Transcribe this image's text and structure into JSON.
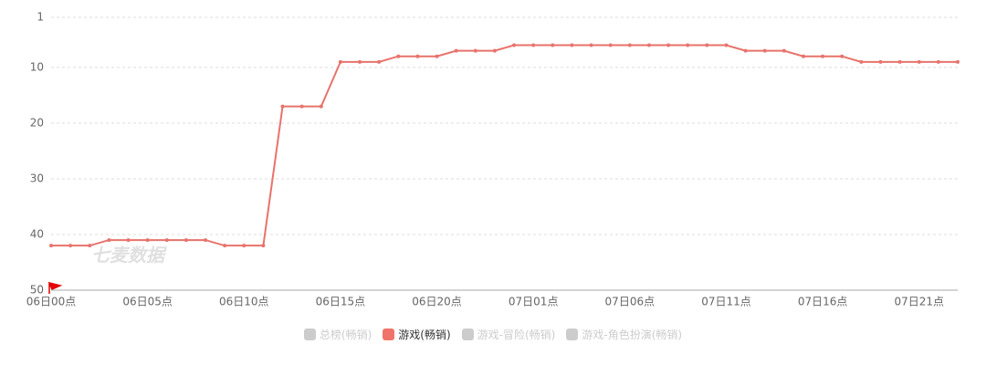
{
  "chart_data": {
    "type": "line",
    "watermark": "七麦数据",
    "y_inverted": true,
    "ylim": [
      1,
      50
    ],
    "yticks": [
      1,
      10,
      20,
      30,
      40,
      50
    ],
    "grid": true,
    "categories": [
      "06日00点",
      null,
      null,
      null,
      null,
      "06日05点",
      null,
      null,
      null,
      null,
      "06日10点",
      null,
      null,
      null,
      null,
      "06日15点",
      null,
      null,
      null,
      null,
      "06日20点",
      null,
      null,
      null,
      null,
      "07日01点",
      null,
      null,
      null,
      null,
      "07日06点",
      null,
      null,
      null,
      null,
      "07日11点",
      null,
      null,
      null,
      null,
      "07日16点",
      null,
      null,
      null,
      null,
      "07日21点",
      null,
      null
    ],
    "series": [
      {
        "name": "总榜(畅销)",
        "color": "#cccccc",
        "visible": false,
        "values": [
          null,
          null,
          null,
          null,
          null,
          null,
          null,
          null,
          null,
          null,
          null,
          null,
          null,
          null,
          null,
          null,
          null,
          null,
          null,
          null,
          null,
          null,
          null,
          null,
          null,
          null,
          null,
          null,
          null,
          null,
          null,
          null,
          null,
          null,
          null,
          null,
          null,
          null,
          null,
          null,
          null,
          null,
          null,
          null,
          null,
          null,
          null,
          null
        ]
      },
      {
        "name": "游戏(畅销)",
        "color": "#e8736c",
        "visible": true,
        "values": [
          42,
          42,
          42,
          41,
          41,
          41,
          41,
          41,
          41,
          42,
          42,
          42,
          17,
          17,
          17,
          9,
          9,
          9,
          8,
          8,
          8,
          7,
          7,
          7,
          6,
          6,
          6,
          6,
          6,
          6,
          6,
          6,
          6,
          6,
          6,
          6,
          7,
          7,
          7,
          8,
          8,
          8,
          9,
          9,
          9,
          9,
          9,
          9
        ]
      },
      {
        "name": "游戏-冒险(畅销)",
        "color": "#cccccc",
        "visible": false,
        "values": [
          null,
          null,
          null,
          null,
          null,
          null,
          null,
          null,
          null,
          null,
          null,
          null,
          null,
          null,
          null,
          null,
          null,
          null,
          null,
          null,
          null,
          null,
          null,
          null,
          null,
          null,
          null,
          null,
          null,
          null,
          null,
          null,
          null,
          null,
          null,
          null,
          null,
          null,
          null,
          null,
          null,
          null,
          null,
          null,
          null,
          null,
          null,
          null
        ]
      },
      {
        "name": "游戏-角色扮演(畅销)",
        "color": "#cccccc",
        "visible": false,
        "values": [
          null,
          null,
          null,
          null,
          null,
          null,
          null,
          null,
          null,
          null,
          null,
          null,
          null,
          null,
          null,
          null,
          null,
          null,
          null,
          null,
          null,
          null,
          null,
          null,
          null,
          null,
          null,
          null,
          null,
          null,
          null,
          null,
          null,
          null,
          null,
          null,
          null,
          null,
          null,
          null,
          null,
          null,
          null,
          null,
          null,
          null,
          null,
          null
        ]
      }
    ]
  }
}
